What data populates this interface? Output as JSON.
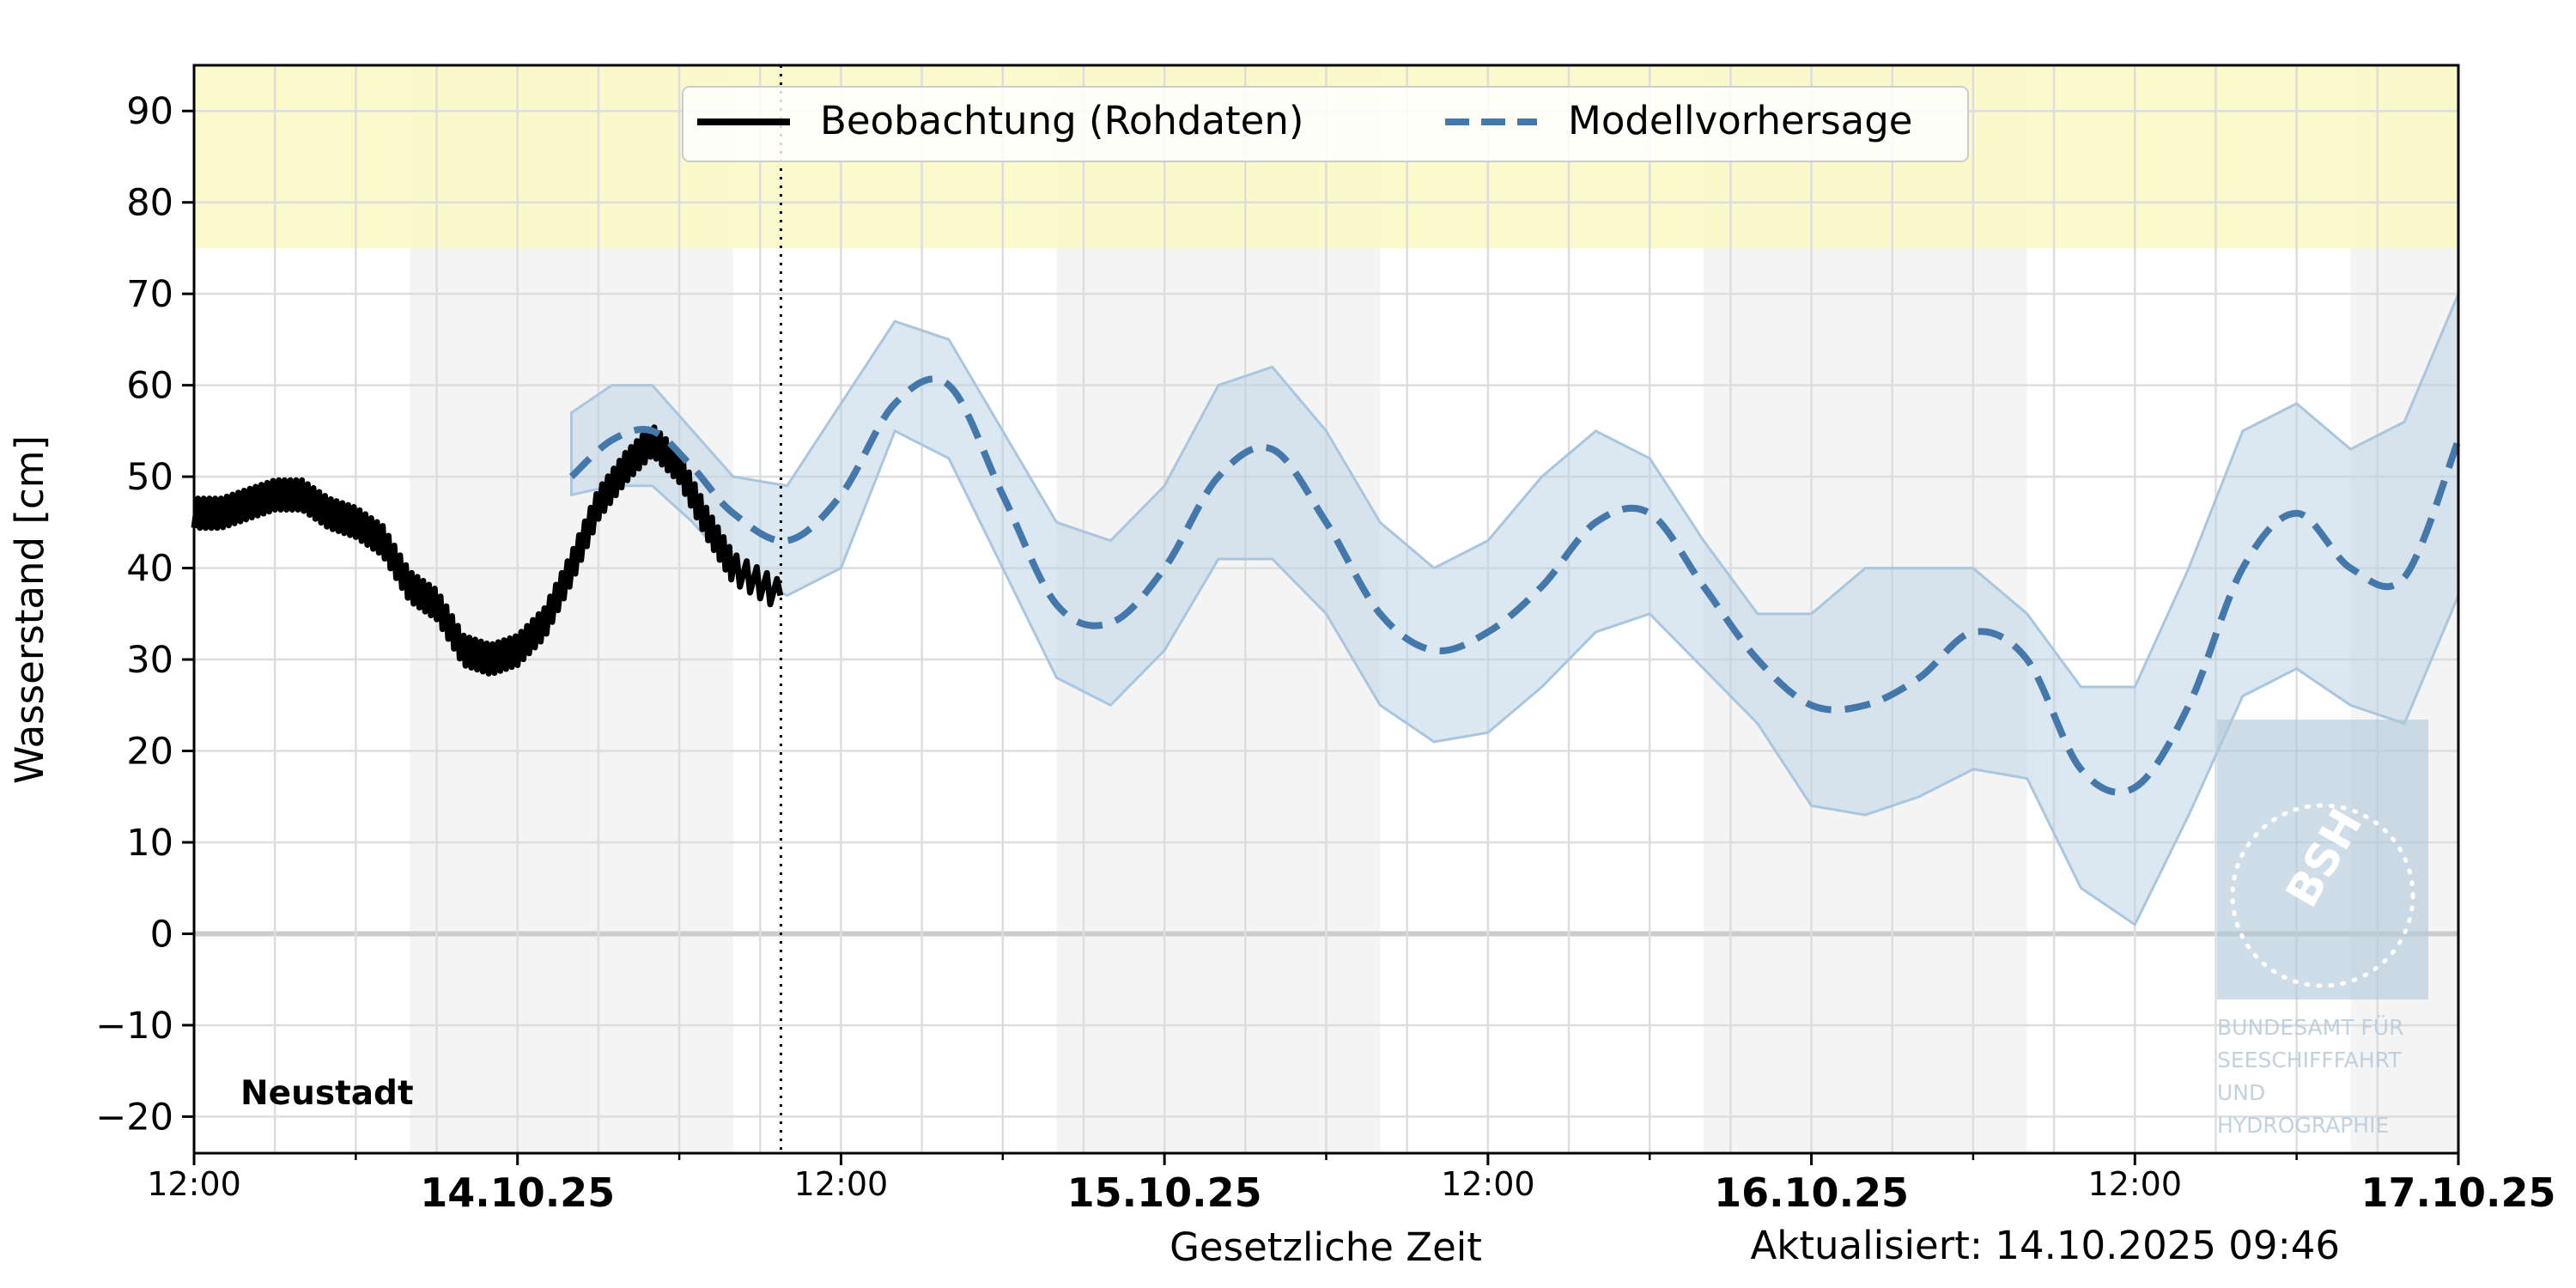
{
  "chart_data": {
    "type": "line",
    "station": "Neustadt",
    "xlabel": "Gesetzliche Zeit",
    "ylabel": "Wasserstand [cm]",
    "updated": "Aktualisiert: 14.10.2025 09:46",
    "ylim": [
      -24,
      95
    ],
    "y_ticks": [
      90,
      80,
      70,
      60,
      50,
      40,
      30,
      20,
      10,
      0,
      -10,
      -20
    ],
    "y_tick_labels": [
      "90",
      "80",
      "70",
      "60",
      "50",
      "40",
      "30",
      "20",
      "10",
      "0",
      "−10",
      "−20"
    ],
    "xlim_hours": [
      -12,
      72
    ],
    "x_ticks": [
      {
        "h": -12,
        "label": "12:00",
        "bold": false
      },
      {
        "h": 0,
        "label": "14.10.25",
        "bold": true
      },
      {
        "h": 12,
        "label": "12:00",
        "bold": false
      },
      {
        "h": 24,
        "label": "15.10.25",
        "bold": true
      },
      {
        "h": 36,
        "label": "12:00",
        "bold": false
      },
      {
        "h": 48,
        "label": "16.10.25",
        "bold": true
      },
      {
        "h": 60,
        "label": "12:00",
        "bold": false
      },
      {
        "h": 72,
        "label": "17.10.25",
        "bold": true
      }
    ],
    "grid": true,
    "now_marker_time": "14.10.2025 09:46",
    "night_shading": [
      [
        -4,
        8
      ],
      [
        20,
        32
      ],
      [
        44,
        56
      ],
      [
        68,
        72
      ]
    ],
    "warning_band": {
      "from": 75,
      "to": 95,
      "color": "#fafac8"
    },
    "legend_position": "top-center",
    "series": [
      {
        "name": "Beobachtung (Rohdaten)",
        "color": "#000000",
        "style": "solid",
        "x": [
          -12,
          -11,
          -10,
          -9,
          -8,
          -7,
          -6,
          -5,
          -4,
          -3,
          -2,
          -1,
          0,
          1,
          2,
          3,
          4,
          5,
          6,
          7,
          8,
          9.75
        ],
        "y": [
          46,
          46,
          47,
          48,
          48,
          46,
          45,
          43,
          38,
          36,
          31,
          30,
          31,
          34,
          40,
          47,
          51,
          54,
          51,
          45,
          40,
          37
        ]
      },
      {
        "name": "Modellvorhersage",
        "color": "#4477aa",
        "style": "dashed",
        "x": [
          2,
          3.5,
          5,
          6.5,
          8,
          10,
          12,
          14,
          16,
          18,
          20,
          22,
          24,
          26,
          28,
          30,
          32,
          34,
          36,
          38,
          40,
          42,
          44,
          46,
          48,
          50,
          52,
          54,
          56,
          58,
          60,
          62,
          64,
          66,
          68,
          70,
          72
        ],
        "y": [
          50,
          54,
          55,
          51,
          46,
          43,
          48,
          58,
          60,
          48,
          36,
          34,
          40,
          50,
          53,
          45,
          35,
          31,
          33,
          38,
          45,
          46,
          38,
          30,
          25,
          25,
          28,
          33,
          30,
          18,
          16,
          25,
          40,
          46,
          40,
          39,
          54
        ],
        "band_upper": [
          57,
          60,
          60,
          55,
          50,
          49,
          58,
          67,
          65,
          55,
          45,
          43,
          49,
          60,
          62,
          55,
          45,
          40,
          43,
          50,
          55,
          52,
          43,
          35,
          35,
          40,
          40,
          40,
          35,
          27,
          27,
          40,
          55,
          58,
          53,
          56,
          70
        ],
        "band_lower": [
          48,
          49,
          49,
          45,
          40,
          37,
          40,
          55,
          52,
          40,
          28,
          25,
          31,
          41,
          41,
          35,
          25,
          21,
          22,
          27,
          33,
          35,
          29,
          23,
          14,
          13,
          15,
          18,
          17,
          5,
          1,
          13,
          26,
          29,
          25,
          23,
          37
        ]
      }
    ],
    "watermark": {
      "logo_text": "BSH",
      "lines": [
        "BUNDESAMT FÜR",
        "SEESCHIFFFAHRT",
        "UND",
        "HYDROGRAPHIE"
      ]
    }
  }
}
